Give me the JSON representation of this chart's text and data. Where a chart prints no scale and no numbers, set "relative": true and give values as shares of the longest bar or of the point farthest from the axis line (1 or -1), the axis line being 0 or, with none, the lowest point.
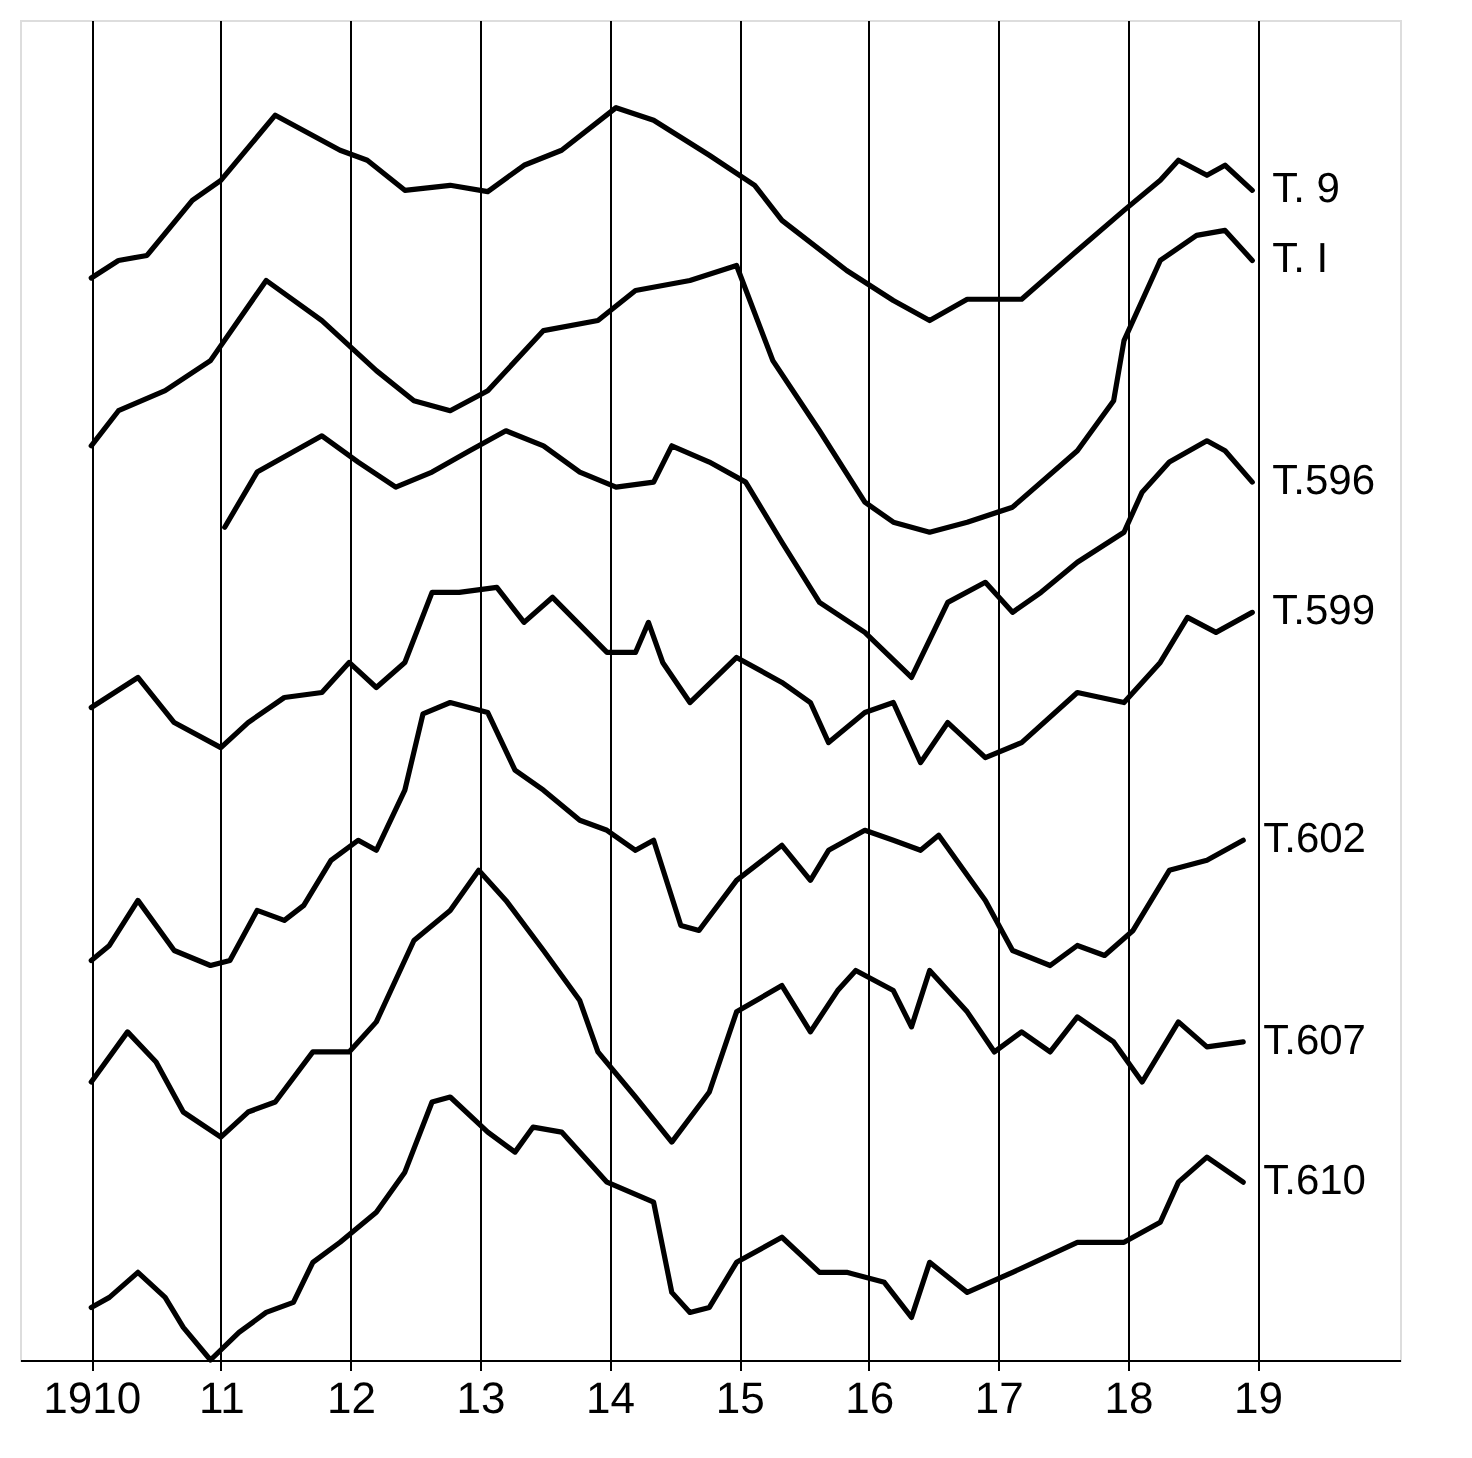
{
  "chart_data": {
    "type": "line",
    "relative": true,
    "grid": "x",
    "legend": false,
    "marker": "none",
    "line_style": "solid",
    "xlim": [
      1909.45,
      1920.1
    ],
    "xticks": [
      {
        "value": 1910,
        "label": "1910"
      },
      {
        "value": 1911,
        "label": "11"
      },
      {
        "value": 1912,
        "label": "12"
      },
      {
        "value": 1913,
        "label": "13"
      },
      {
        "value": 1914,
        "label": "14"
      },
      {
        "value": 1915,
        "label": "15"
      },
      {
        "value": 1916,
        "label": "16"
      },
      {
        "value": 1917,
        "label": "17"
      },
      {
        "value": 1918,
        "label": "18"
      },
      {
        "value": 1919,
        "label": "19"
      }
    ],
    "series": [
      {
        "name": "T. 9",
        "color": "#000000",
        "x": [
          1910.0,
          1910.21,
          1910.43,
          1910.78,
          1911.0,
          1911.42,
          1911.92,
          1912.13,
          1912.42,
          1912.77,
          1913.06,
          1913.34,
          1913.63,
          1914.05,
          1914.34,
          1914.77,
          1915.12,
          1915.33,
          1915.83,
          1916.19,
          1916.47,
          1916.76,
          1917.18,
          1917.61,
          1917.97,
          1918.25,
          1918.39,
          1918.61,
          1918.75,
          1918.96
        ],
        "values": [
          0.864,
          0.878,
          0.882,
          0.926,
          0.942,
          0.994,
          0.966,
          0.958,
          0.934,
          0.938,
          0.933,
          0.954,
          0.966,
          1.0,
          0.99,
          0.962,
          0.938,
          0.91,
          0.87,
          0.846,
          0.83,
          0.847,
          0.847,
          0.886,
          0.918,
          0.942,
          0.958,
          0.946,
          0.954,
          0.934
        ]
      },
      {
        "name": "T. I",
        "color": "#000000",
        "x": [
          1910.0,
          1910.21,
          1910.57,
          1910.92,
          1911.35,
          1911.78,
          1912.2,
          1912.49,
          1912.77,
          1913.06,
          1913.49,
          1913.91,
          1914.2,
          1914.62,
          1914.98,
          1915.26,
          1915.62,
          1915.97,
          1916.19,
          1916.47,
          1916.76,
          1917.11,
          1917.61,
          1917.89,
          1917.97,
          1918.25,
          1918.53,
          1918.75,
          1918.96
        ],
        "values": [
          0.73,
          0.758,
          0.774,
          0.798,
          0.862,
          0.83,
          0.79,
          0.766,
          0.758,
          0.774,
          0.822,
          0.83,
          0.854,
          0.862,
          0.874,
          0.798,
          0.742,
          0.685,
          0.669,
          0.661,
          0.669,
          0.681,
          0.726,
          0.766,
          0.814,
          0.878,
          0.898,
          0.902,
          0.878
        ]
      },
      {
        "name": "T.596",
        "color": "#000000",
        "x": [
          1911.03,
          1911.28,
          1911.78,
          1912.06,
          1912.35,
          1912.63,
          1912.92,
          1913.2,
          1913.49,
          1913.77,
          1914.05,
          1914.34,
          1914.48,
          1914.77,
          1915.05,
          1915.33,
          1915.62,
          1915.97,
          1916.33,
          1916.61,
          1916.9,
          1917.11,
          1917.33,
          1917.61,
          1917.97,
          1918.11,
          1918.32,
          1918.61,
          1918.75,
          1918.96
        ],
        "values": [
          0.665,
          0.709,
          0.738,
          0.717,
          0.697,
          0.709,
          0.726,
          0.742,
          0.73,
          0.709,
          0.697,
          0.701,
          0.73,
          0.717,
          0.701,
          0.653,
          0.605,
          0.581,
          0.545,
          0.605,
          0.621,
          0.597,
          0.613,
          0.637,
          0.661,
          0.693,
          0.717,
          0.734,
          0.726,
          0.701
        ]
      },
      {
        "name": "T.599",
        "color": "#000000",
        "x": [
          1910.0,
          1910.36,
          1910.64,
          1911.0,
          1911.21,
          1911.49,
          1911.78,
          1911.99,
          1912.2,
          1912.42,
          1912.63,
          1912.84,
          1913.13,
          1913.34,
          1913.56,
          1913.98,
          1914.2,
          1914.3,
          1914.41,
          1914.62,
          1914.98,
          1915.33,
          1915.55,
          1915.69,
          1915.97,
          1916.19,
          1916.4,
          1916.61,
          1916.9,
          1917.18,
          1917.61,
          1917.97,
          1918.25,
          1918.46,
          1918.68,
          1918.96
        ],
        "values": [
          0.521,
          0.545,
          0.509,
          0.489,
          0.509,
          0.529,
          0.533,
          0.557,
          0.537,
          0.557,
          0.613,
          0.613,
          0.617,
          0.589,
          0.609,
          0.565,
          0.565,
          0.589,
          0.557,
          0.525,
          0.561,
          0.541,
          0.525,
          0.493,
          0.517,
          0.525,
          0.477,
          0.509,
          0.481,
          0.493,
          0.533,
          0.525,
          0.557,
          0.593,
          0.581,
          0.597
        ]
      },
      {
        "name": "T.602",
        "color": "#000000",
        "x": [
          1910.0,
          1910.14,
          1910.36,
          1910.64,
          1910.92,
          1911.07,
          1911.28,
          1911.49,
          1911.64,
          1911.85,
          1912.06,
          1912.2,
          1912.42,
          1912.56,
          1912.77,
          1913.06,
          1913.27,
          1913.49,
          1913.77,
          1913.98,
          1914.2,
          1914.34,
          1914.55,
          1914.69,
          1914.98,
          1915.33,
          1915.55,
          1915.69,
          1915.97,
          1916.19,
          1916.4,
          1916.54,
          1916.9,
          1917.11,
          1917.4,
          1917.61,
          1917.82,
          1918.04,
          1918.32,
          1918.61,
          1918.89
        ],
        "values": [
          0.319,
          0.331,
          0.367,
          0.327,
          0.315,
          0.319,
          0.359,
          0.351,
          0.363,
          0.399,
          0.415,
          0.407,
          0.455,
          0.516,
          0.525,
          0.517,
          0.471,
          0.455,
          0.431,
          0.423,
          0.407,
          0.415,
          0.347,
          0.343,
          0.383,
          0.411,
          0.383,
          0.407,
          0.423,
          0.415,
          0.407,
          0.419,
          0.367,
          0.327,
          0.315,
          0.331,
          0.323,
          0.343,
          0.391,
          0.399,
          0.415
        ]
      },
      {
        "name": "T.607",
        "color": "#000000",
        "x": [
          1910.0,
          1910.28,
          1910.5,
          1910.71,
          1911.0,
          1911.21,
          1911.42,
          1911.71,
          1911.99,
          1912.2,
          1912.49,
          1912.77,
          1912.99,
          1913.2,
          1913.49,
          1913.77,
          1913.91,
          1914.2,
          1914.48,
          1914.77,
          1914.98,
          1915.33,
          1915.55,
          1915.76,
          1915.9,
          1916.19,
          1916.33,
          1916.47,
          1916.76,
          1916.97,
          1917.18,
          1917.4,
          1917.61,
          1917.89,
          1918.11,
          1918.39,
          1918.61,
          1918.89
        ],
        "values": [
          0.222,
          0.262,
          0.238,
          0.198,
          0.178,
          0.198,
          0.206,
          0.246,
          0.246,
          0.27,
          0.335,
          0.359,
          0.391,
          0.367,
          0.327,
          0.287,
          0.246,
          0.21,
          0.174,
          0.214,
          0.278,
          0.299,
          0.262,
          0.295,
          0.311,
          0.295,
          0.266,
          0.311,
          0.278,
          0.246,
          0.262,
          0.246,
          0.274,
          0.254,
          0.222,
          0.27,
          0.25,
          0.254
        ]
      },
      {
        "name": "T.610",
        "color": "#000000",
        "x": [
          1910.0,
          1910.14,
          1910.36,
          1910.57,
          1910.71,
          1910.92,
          1911.14,
          1911.35,
          1911.56,
          1911.71,
          1911.92,
          1912.2,
          1912.42,
          1912.63,
          1912.77,
          1913.06,
          1913.27,
          1913.41,
          1913.63,
          1913.98,
          1914.34,
          1914.48,
          1914.62,
          1914.77,
          1914.98,
          1915.33,
          1915.62,
          1915.83,
          1916.12,
          1916.33,
          1916.47,
          1916.76,
          1917.11,
          1917.61,
          1917.97,
          1918.25,
          1918.39,
          1918.61,
          1918.89
        ],
        "values": [
          0.042,
          0.05,
          0.07,
          0.05,
          0.026,
          0.0,
          0.022,
          0.038,
          0.046,
          0.078,
          0.094,
          0.118,
          0.15,
          0.206,
          0.21,
          0.182,
          0.166,
          0.186,
          0.182,
          0.142,
          0.126,
          0.054,
          0.038,
          0.042,
          0.078,
          0.098,
          0.07,
          0.07,
          0.062,
          0.034,
          0.078,
          0.054,
          0.07,
          0.094,
          0.094,
          0.11,
          0.142,
          0.162,
          0.142
        ]
      }
    ]
  }
}
